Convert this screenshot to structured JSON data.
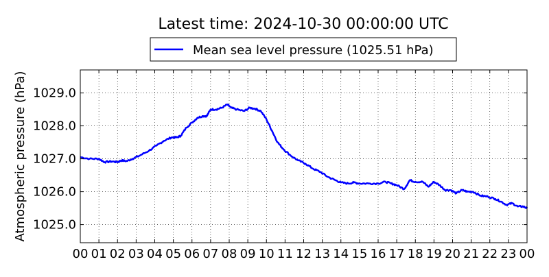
{
  "chart_data": {
    "type": "line",
    "title": "Latest time: 2024-10-30 00:00:00 UTC",
    "xlabel": "",
    "ylabel": "Atmospheric pressure (hPa)",
    "xlim": [
      0,
      24
    ],
    "ylim": [
      1024.45,
      1029.7
    ],
    "x_ticks": [
      "00",
      "01",
      "02",
      "03",
      "04",
      "05",
      "06",
      "07",
      "08",
      "09",
      "10",
      "11",
      "12",
      "13",
      "14",
      "15",
      "16",
      "17",
      "18",
      "19",
      "20",
      "21",
      "22",
      "23",
      "00"
    ],
    "y_ticks": [
      "1025.0",
      "1026.0",
      "1027.0",
      "1028.0",
      "1029.0"
    ],
    "grid": true,
    "grid_style": "dotted",
    "legend_position": "top-center",
    "series": [
      {
        "name": "Mean sea level pressure (1025.51 hPa)",
        "color": "#0000ff",
        "x": [
          0.0,
          0.5,
          1.0,
          1.3,
          1.7,
          2.0,
          2.2,
          2.5,
          2.8,
          3.2,
          3.7,
          4.1,
          4.5,
          4.9,
          5.2,
          5.4,
          5.7,
          6.0,
          6.3,
          6.6,
          6.8,
          7.0,
          7.3,
          7.6,
          7.9,
          8.1,
          8.4,
          8.8,
          9.1,
          9.4,
          9.7,
          10.0,
          10.3,
          10.6,
          10.9,
          11.3,
          11.7,
          12.1,
          12.5,
          12.9,
          13.3,
          13.7,
          14.0,
          14.4,
          14.7,
          15.0,
          15.5,
          16.0,
          16.4,
          16.7,
          17.0,
          17.4,
          17.7,
          18.0,
          18.4,
          18.7,
          19.0,
          19.3,
          19.6,
          19.9,
          20.2,
          20.5,
          20.8,
          21.1,
          21.5,
          21.9,
          22.3,
          22.6,
          22.9,
          23.2,
          23.5,
          23.8,
          24.0
        ],
        "y": [
          1027.05,
          1027.0,
          1027.0,
          1026.9,
          1026.92,
          1026.9,
          1026.95,
          1026.93,
          1027.0,
          1027.1,
          1027.25,
          1027.4,
          1027.55,
          1027.65,
          1027.65,
          1027.7,
          1027.95,
          1028.1,
          1028.25,
          1028.3,
          1028.3,
          1028.5,
          1028.5,
          1028.55,
          1028.65,
          1028.55,
          1028.5,
          1028.45,
          1028.55,
          1028.52,
          1028.45,
          1028.2,
          1027.85,
          1027.5,
          1027.3,
          1027.1,
          1026.95,
          1026.85,
          1026.7,
          1026.6,
          1026.45,
          1026.35,
          1026.28,
          1026.25,
          1026.28,
          1026.25,
          1026.25,
          1026.25,
          1026.3,
          1026.25,
          1026.2,
          1026.08,
          1026.35,
          1026.3,
          1026.3,
          1026.15,
          1026.3,
          1026.2,
          1026.05,
          1026.05,
          1025.95,
          1026.05,
          1026.0,
          1026.0,
          1025.88,
          1025.85,
          1025.78,
          1025.7,
          1025.6,
          1025.65,
          1025.55,
          1025.55,
          1025.5
        ]
      }
    ]
  }
}
